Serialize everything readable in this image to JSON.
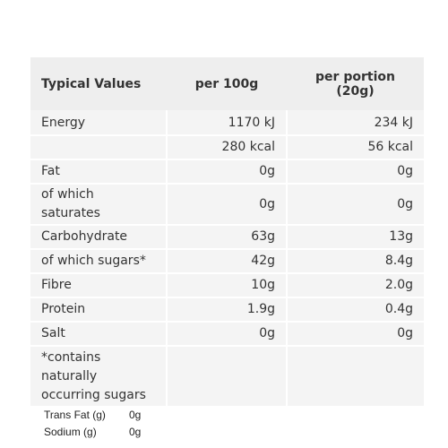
{
  "table": {
    "headers": [
      "Typical Values",
      "per 100g",
      "per portion (20g)"
    ],
    "rows": [
      {
        "label": "Energy",
        "per100": "1170 kJ",
        "portion": "234 kJ"
      },
      {
        "label": "",
        "per100": "280 kcal",
        "portion": "56 kcal"
      },
      {
        "label": "Fat",
        "per100": "0g",
        "portion": "0g"
      },
      {
        "label": "of which saturates",
        "per100": "0g",
        "portion": "0g"
      },
      {
        "label": "Carbohydrate",
        "per100": "63g",
        "portion": "13g"
      },
      {
        "label": "of which sugars*",
        "per100": "42g",
        "portion": "8.4g"
      },
      {
        "label": "Fibre",
        "per100": "10g",
        "portion": "2.0g"
      },
      {
        "label": "Protein",
        "per100": "1.9g",
        "portion": "0.4g"
      },
      {
        "label": "Salt",
        "per100": "0g",
        "portion": "0g"
      },
      {
        "label": "*contains naturally occurring sugars",
        "per100": "",
        "portion": ""
      }
    ]
  },
  "extra": [
    {
      "label": "Trans Fat (g)",
      "value": "0g"
    },
    {
      "label": "Sodium (g)",
      "value": "0g"
    }
  ]
}
